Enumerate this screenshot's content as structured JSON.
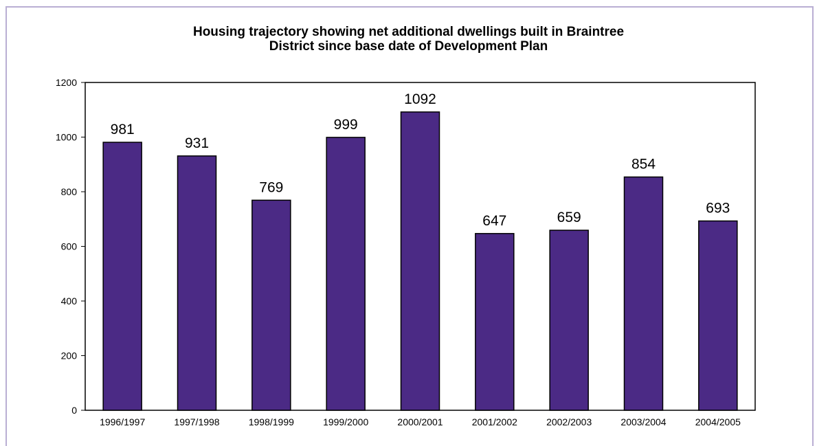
{
  "chart_data": {
    "type": "bar",
    "title_lines": [
      "Housing trajectory showing net additional dwellings built in Braintree",
      "District since base date of Development Plan"
    ],
    "xlabel": "",
    "ylabel": "",
    "categories": [
      "1996/1997",
      "1997/1998",
      "1998/1999",
      "1999/2000",
      "2000/2001",
      "2001/2002",
      "2002/2003",
      "2003/2004",
      "2004/2005"
    ],
    "values": [
      981,
      931,
      769,
      999,
      1092,
      647,
      659,
      854,
      693
    ],
    "data_labels": [
      "981",
      "931",
      "769",
      "999",
      "1092",
      "647",
      "659",
      "854",
      "693"
    ],
    "ylim": [
      0,
      1200
    ],
    "yticks": [
      0,
      200,
      400,
      600,
      800,
      1000,
      1200
    ],
    "grid": false,
    "legend": "none",
    "bar_color": "#4b2a85",
    "frame_color": "#b9aed3"
  }
}
